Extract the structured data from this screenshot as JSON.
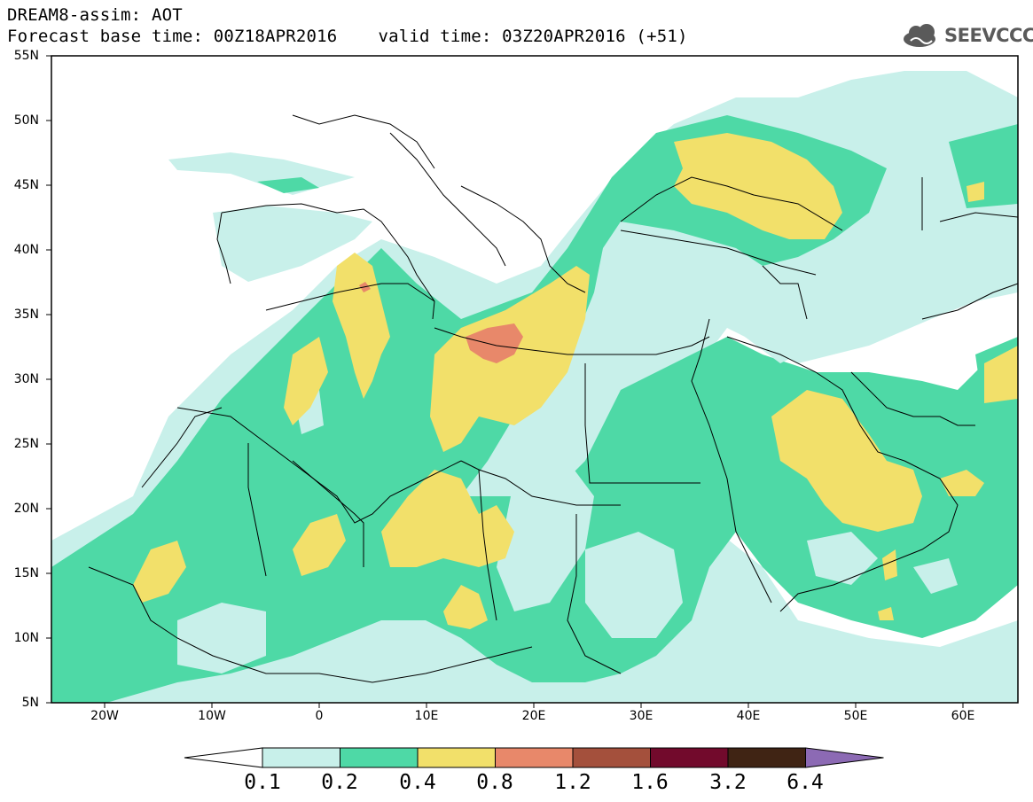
{
  "header": {
    "title_line1": "DREAM8-assim: AOT",
    "base_time": "Forecast base time: 00Z18APR2016",
    "valid_time": "valid time: 03Z20APR2016 (+51)",
    "logo_text": "SEEVCCC"
  },
  "axes": {
    "lat_labels": [
      "55N",
      "50N",
      "45N",
      "40N",
      "35N",
      "30N",
      "25N",
      "20N",
      "15N",
      "10N",
      "5N"
    ],
    "lon_labels": [
      "20W",
      "10W",
      "0",
      "10E",
      "20E",
      "30E",
      "40E",
      "50E",
      "60E"
    ]
  },
  "legend": {
    "levels": [
      "0.1",
      "0.2",
      "0.4",
      "0.8",
      "1.2",
      "1.6",
      "3.2",
      "6.4"
    ],
    "colors": [
      "#ffffff",
      "#c8f0ea",
      "#4ed9a6",
      "#f2e06a",
      "#e8886a",
      "#a4503c",
      "#720a2c",
      "#402414",
      "#8c6ab4"
    ]
  },
  "colors": {
    "c1": "#c8f0ea",
    "c2": "#4ed9a6",
    "c3": "#f2e06a",
    "c4": "#e8886a",
    "c5": "#c06e56"
  }
}
